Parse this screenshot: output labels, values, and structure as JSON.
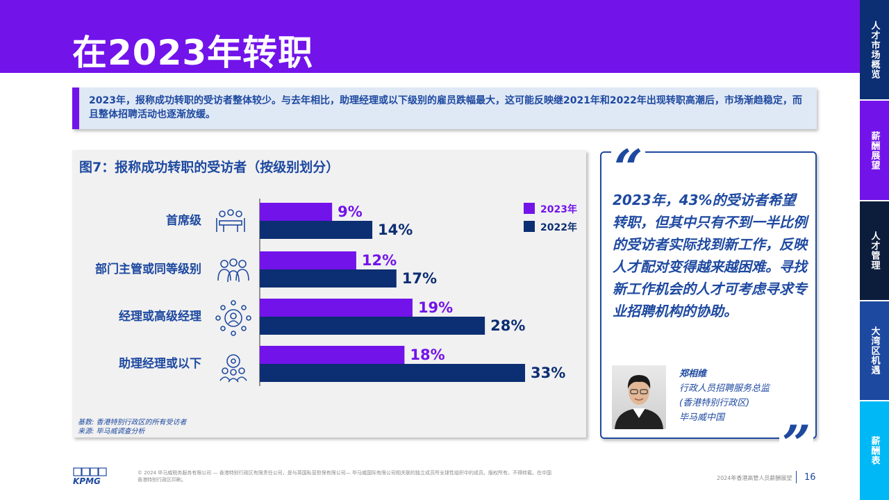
{
  "page": {
    "title": "在2023年转职",
    "intro": "2023年，报称成功转职的受访者整体较少。与去年相比，助理经理或以下级别的雇员跌幅最大，这可能反映继2021年和2022年出现转职高潮后，市场渐趋稳定，而且整体招聘活动也逐渐放缓。"
  },
  "side_tabs": [
    {
      "label": "人才市场概览",
      "color": "#0c2e72"
    },
    {
      "label": "薪酬展望",
      "color": "#7213ea"
    },
    {
      "label": "人才管理",
      "color": "#0c1d3c"
    },
    {
      "label": "大湾区机遇",
      "color": "#1e49a0"
    },
    {
      "label": "薪酬表",
      "color": "#00b8f5"
    }
  ],
  "chart_panel": {
    "title": "图7：报称成功转职的受访者（按级别划分）",
    "footnote_base": "基数: 香港特别行政区的所有受访者",
    "footnote_source": "来源:  毕马威调查分析"
  },
  "chart_data": {
    "type": "bar",
    "orientation": "horizontal",
    "categories": [
      "首席级",
      "部门主管或同等级别",
      "经理或高级经理",
      "助理经理或以下"
    ],
    "category_icons": [
      "meeting-table-icon",
      "team-group-icon",
      "network-person-icon",
      "gear-people-icon"
    ],
    "series": [
      {
        "name": "2023年",
        "values": [
          9,
          12,
          19,
          18
        ],
        "labels": [
          "9%",
          "12%",
          "19%",
          "18%"
        ],
        "color": "#7213ea"
      },
      {
        "name": "2022年",
        "values": [
          14,
          17,
          28,
          33
        ],
        "labels": [
          "14%",
          "17%",
          "28%",
          "33%"
        ],
        "color": "#0c2e72"
      }
    ],
    "xlim": [
      0,
      33
    ],
    "legend_position": "top-right",
    "grid": false
  },
  "quote": {
    "text": "2023年，43%的受访者希望转职，但其中只有不到一半比例的受访者实际找到新工作，反映人才配对变得越来越困难。寻找新工作机会的人才可考虑寻求专业招聘机构的协助。",
    "name": "郑相维",
    "role": "行政人员招聘服务总监",
    "region": "(香港特别行政区)",
    "org": "毕马威中国"
  },
  "footer": {
    "logo": "KPMG",
    "copyright": "© 2024 毕马威税务服务有限公司 — 香港特别行政区有限责任公司，是与英国私营担保有限公司— 毕马威国际有限公司相关联的独立成员所全球性组织中的成员。版权所有，不得转载。在中国香港特别行政区印刷。",
    "report_name": "2024年香港高管人员薪酬展望",
    "page_number": "16"
  }
}
